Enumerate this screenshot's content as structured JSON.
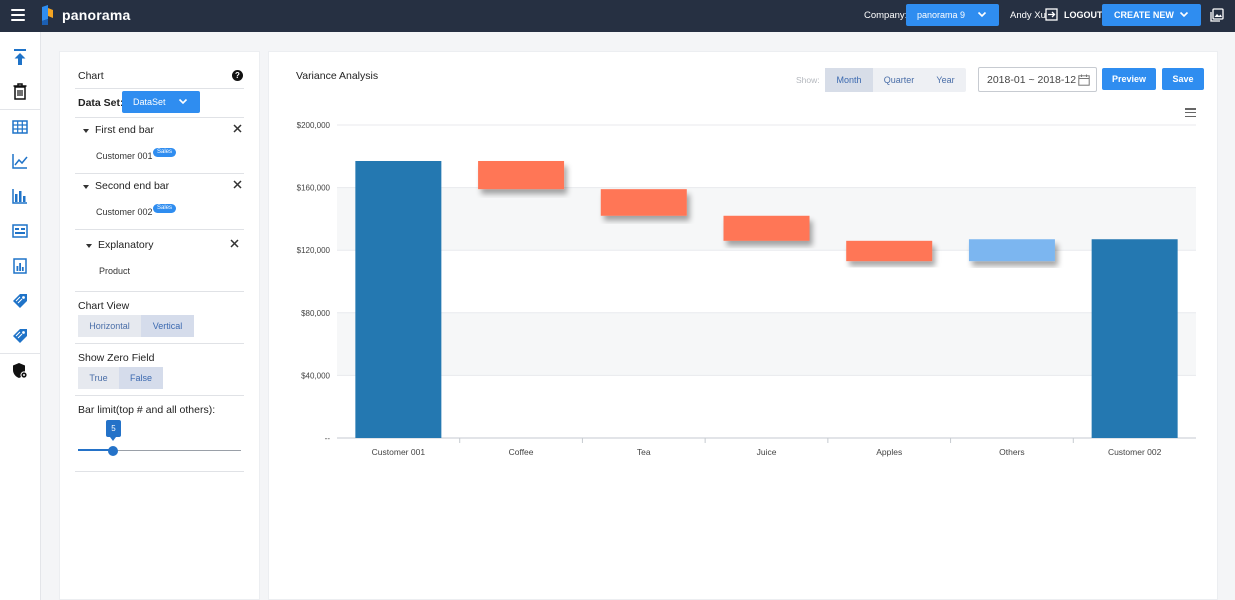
{
  "app": {
    "name": "panorama",
    "company_label": "Company:",
    "company_value": "panorama 9",
    "user_name": "Andy Xu",
    "logout_label": "LOGOUT",
    "create_label": "CREATE NEW",
    "brand_color": "#2f8df0",
    "header_color": "#263042"
  },
  "rail": {
    "items": [
      "upload-icon",
      "trash-icon",
      "table-icon",
      "line-chart-icon",
      "bar-chart-icon",
      "dashboard-icon",
      "report-icon",
      "tag-icon",
      "tag-alt-icon",
      "shield-settings-icon"
    ]
  },
  "panel": {
    "title": "Chart",
    "help_glyph": "?",
    "dataset_label": "Data Set:",
    "dataset_value": "DataSet",
    "sections": [
      {
        "title": "First end bar",
        "item": "Customer 001",
        "badge": "Sales"
      },
      {
        "title": "Second end bar",
        "item": "Customer 002",
        "badge": "Sales"
      },
      {
        "title": "Explanatory",
        "item": "Product",
        "badge": ""
      }
    ],
    "chart_view_label": "Chart View",
    "chart_view_options": [
      "Horizontal",
      "Vertical"
    ],
    "chart_view_selected": "Vertical",
    "zero_field_label": "Show Zero Field",
    "zero_field_options": [
      "True",
      "False"
    ],
    "zero_field_selected": "False",
    "bar_limit_label": "Bar limit(top # and all others):",
    "bar_limit_value": "5"
  },
  "main": {
    "title": "Variance Analysis",
    "show_label": "Show:",
    "period_options": [
      "Month",
      "Quarter",
      "Year"
    ],
    "period_selected": "Month",
    "date_range": "2018-01 ~ 2018-12",
    "preview_label": "Preview",
    "save_label": "Save"
  },
  "chart_data": {
    "type": "bar",
    "subtype": "waterfall",
    "title": "",
    "xlabel": "",
    "ylabel": "",
    "categories": [
      "Customer 001",
      "Coffee",
      "Tea",
      "Juice",
      "Apples",
      "Others",
      "Customer 002"
    ],
    "bars": [
      {
        "start": 0,
        "end": 177000,
        "kind": "total"
      },
      {
        "start": 177000,
        "end": 159000,
        "kind": "decrease"
      },
      {
        "start": 159000,
        "end": 142000,
        "kind": "decrease"
      },
      {
        "start": 142000,
        "end": 126000,
        "kind": "decrease"
      },
      {
        "start": 126000,
        "end": 113000,
        "kind": "decrease"
      },
      {
        "start": 113000,
        "end": 127000,
        "kind": "increase"
      },
      {
        "start": 0,
        "end": 127000,
        "kind": "total"
      }
    ],
    "ylim": [
      0,
      200000
    ],
    "yticks": [
      0,
      40000,
      80000,
      120000,
      160000,
      200000
    ],
    "ytick_labels": [
      "--",
      "$40,000",
      "$80,000",
      "$120,000",
      "$160,000",
      "$200,000"
    ],
    "colors": {
      "total": "#2478b1",
      "decrease": "#ff7657",
      "increase": "#7bb6f0"
    },
    "grid": true,
    "legend": "none"
  }
}
